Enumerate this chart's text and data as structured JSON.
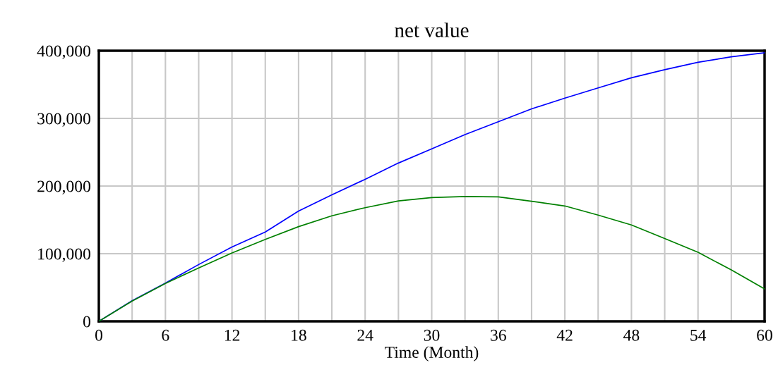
{
  "chart_data": {
    "type": "line",
    "title": "net value",
    "xlabel": "Time (Month)",
    "x": [
      0,
      3,
      6,
      9,
      12,
      15,
      18,
      21,
      24,
      27,
      30,
      33,
      36,
      39,
      42,
      45,
      48,
      51,
      54,
      57,
      60
    ],
    "series": [
      {
        "color": "#0000ff",
        "values": [
          0,
          30500,
          56600,
          84000,
          110000,
          132000,
          163000,
          187000,
          210000,
          234000,
          255000,
          276000,
          295000,
          314000,
          330000,
          345000,
          360000,
          372000,
          383000,
          391000,
          397000
        ]
      },
      {
        "color": "#008000",
        "values": [
          0,
          30000,
          56000,
          79000,
          101000,
          121000,
          140000,
          156000,
          168000,
          178000,
          183000,
          184500,
          184000,
          177500,
          170500,
          157000,
          142500,
          122500,
          102000,
          76000,
          48000
        ]
      }
    ],
    "xlim": [
      0,
      60
    ],
    "ylim": [
      0,
      400000
    ],
    "xticks": [
      0,
      {
        "value": 3,
        "label": null
      },
      6,
      {
        "value": 9,
        "label": null
      },
      12,
      {
        "value": 15,
        "label": null
      },
      18,
      {
        "value": 21,
        "label": null
      },
      24,
      {
        "value": 27,
        "label": null
      },
      30,
      {
        "value": 33,
        "label": null
      },
      36,
      {
        "value": 39,
        "label": null
      },
      42,
      {
        "value": 45,
        "label": null
      },
      48,
      {
        "value": 51,
        "label": null
      },
      54,
      {
        "value": 57,
        "label": null
      },
      60
    ],
    "yticks": [
      {
        "value": 0,
        "label": "0"
      },
      {
        "value": 100000,
        "label": "100,000"
      },
      {
        "value": 200000,
        "label": "200,000"
      },
      {
        "value": 300000,
        "label": "300,000"
      },
      {
        "value": 400000,
        "label": "400,000"
      }
    ],
    "grid": true,
    "marker": "none",
    "line_style": "solid"
  }
}
